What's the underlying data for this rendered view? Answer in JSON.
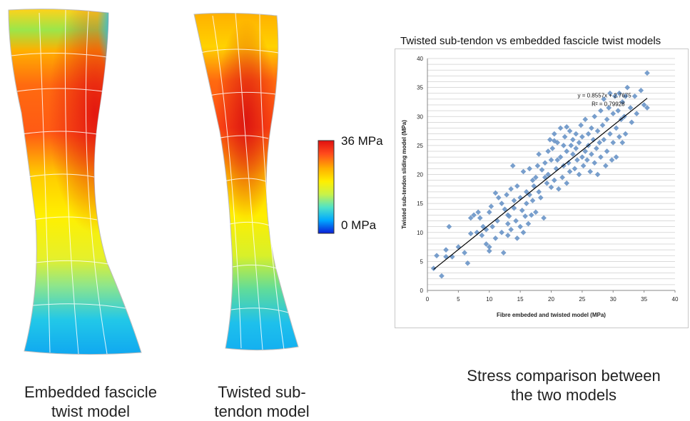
{
  "figure": {
    "left_model_caption": "Embedded fascicle twist model",
    "middle_model_caption": "Twisted sub-tendon model",
    "chart_caption": "Stress comparison between the two models",
    "colorbar": {
      "max_label": "36 MPa",
      "min_label": "0 MPa",
      "colors": [
        "#0a1ed8",
        "#00a8ff",
        "#4fe3c8",
        "#c8f24a",
        "#ffef00",
        "#ffb000",
        "#ff4a1c",
        "#e01010"
      ]
    }
  },
  "chart_data": {
    "type": "scatter",
    "title": "Twisted sub-tendon vs embedded fascicle twist models",
    "xlabel": "Fibre embeded and twisted model (MPa)",
    "ylabel": "Twisted sub-tendon sliding model (MPa)",
    "xlim": [
      0,
      40
    ],
    "ylim": [
      0,
      40
    ],
    "xticks": [
      "0",
      "5",
      "10",
      "15",
      "20",
      "25",
      "30",
      "35",
      "40"
    ],
    "yticks": [
      "0",
      "5",
      "10",
      "15",
      "20",
      "25",
      "30",
      "35",
      "40"
    ],
    "grid": "horizontal",
    "marker_color": "#6a95c8",
    "trendline": {
      "equation": "y = 0.8557x + 2.7675",
      "r2": "R² = 0.79928",
      "slope": 0.8557,
      "intercept": 2.7675,
      "x_range": [
        1,
        35.5
      ]
    },
    "points": [
      [
        1,
        3.8
      ],
      [
        1.5,
        6
      ],
      [
        2.3,
        2.5
      ],
      [
        3,
        5.8
      ],
      [
        3,
        7
      ],
      [
        3.5,
        11
      ],
      [
        4,
        5.8
      ],
      [
        5,
        7.5
      ],
      [
        6,
        6.5
      ],
      [
        6.5,
        4.7
      ],
      [
        7,
        9.8
      ],
      [
        7,
        12.5
      ],
      [
        7.5,
        13
      ],
      [
        8,
        10
      ],
      [
        8.2,
        13.5
      ],
      [
        8.5,
        12.5
      ],
      [
        8.8,
        9.5
      ],
      [
        9,
        11
      ],
      [
        9.5,
        8
      ],
      [
        9.5,
        10.5
      ],
      [
        10,
        7.5
      ],
      [
        10,
        13.5
      ],
      [
        10.3,
        14.5
      ],
      [
        10.5,
        11
      ],
      [
        11,
        16.8
      ],
      [
        11,
        9
      ],
      [
        11.3,
        12
      ],
      [
        11.5,
        16
      ],
      [
        12,
        10
      ],
      [
        12,
        15
      ],
      [
        12.3,
        6.5
      ],
      [
        12.5,
        14
      ],
      [
        12.8,
        16.5
      ],
      [
        13,
        13
      ],
      [
        13,
        11.5
      ],
      [
        13.2,
        12.8
      ],
      [
        13.5,
        10.5
      ],
      [
        13.5,
        17.5
      ],
      [
        13.8,
        21.5
      ],
      [
        14,
        14.2
      ],
      [
        14,
        15.5
      ],
      [
        14.3,
        12
      ],
      [
        14.5,
        9
      ],
      [
        14.5,
        18
      ],
      [
        15,
        11
      ],
      [
        15,
        16
      ],
      [
        15.3,
        13.8
      ],
      [
        15.5,
        10
      ],
      [
        15.5,
        20.5
      ],
      [
        15.8,
        12.8
      ],
      [
        16,
        15
      ],
      [
        16,
        17
      ],
      [
        16.3,
        11.5
      ],
      [
        16.5,
        16.5
      ],
      [
        16.8,
        13
      ],
      [
        17,
        19
      ],
      [
        17,
        15.5
      ],
      [
        17.2,
        18
      ],
      [
        17.5,
        19.5
      ],
      [
        17.5,
        13.5
      ],
      [
        17.8,
        21.5
      ],
      [
        18,
        17
      ],
      [
        18,
        23.5
      ],
      [
        18.3,
        16
      ],
      [
        18.5,
        20.8
      ],
      [
        18.8,
        12.5
      ],
      [
        19,
        22
      ],
      [
        19,
        19.5
      ],
      [
        19.3,
        18.5
      ],
      [
        19.5,
        24
      ],
      [
        19.5,
        20
      ],
      [
        19.8,
        26
      ],
      [
        20,
        17.8
      ],
      [
        20,
        22.5
      ],
      [
        20.2,
        24.5
      ],
      [
        20.5,
        27
      ],
      [
        20.5,
        19
      ],
      [
        20.8,
        21
      ],
      [
        21,
        22.5
      ],
      [
        21,
        25.5
      ],
      [
        21.2,
        17.5
      ],
      [
        21.5,
        28
      ],
      [
        21.5,
        23
      ],
      [
        21.8,
        19.5
      ],
      [
        22,
        25
      ],
      [
        22,
        21.5
      ],
      [
        22.2,
        26.5
      ],
      [
        22.5,
        24
      ],
      [
        22.5,
        18.5
      ],
      [
        22.8,
        22
      ],
      [
        23,
        27.5
      ],
      [
        23,
        20.5
      ],
      [
        23.2,
        25
      ],
      [
        23.5,
        23.5
      ],
      [
        23.5,
        26
      ],
      [
        23.8,
        21
      ],
      [
        24,
        24.5
      ],
      [
        24,
        27
      ],
      [
        24.2,
        22.5
      ],
      [
        24.5,
        25.5
      ],
      [
        24.5,
        20
      ],
      [
        24.8,
        28.5
      ],
      [
        25,
        23
      ],
      [
        25,
        26.5
      ],
      [
        25.2,
        21.5
      ],
      [
        25.5,
        24
      ],
      [
        25.5,
        29.5
      ],
      [
        25.8,
        22.5
      ],
      [
        26,
        27
      ],
      [
        26,
        25
      ],
      [
        26.3,
        20.5
      ],
      [
        26.5,
        28
      ],
      [
        26.5,
        23.5
      ],
      [
        26.8,
        26
      ],
      [
        27,
        22
      ],
      [
        27,
        30
      ],
      [
        27.3,
        24.5
      ],
      [
        27.5,
        27.5
      ],
      [
        27.5,
        20
      ],
      [
        27.8,
        25.5
      ],
      [
        28,
        31
      ],
      [
        28,
        23
      ],
      [
        28.3,
        28.5
      ],
      [
        28.5,
        26
      ],
      [
        28.5,
        33
      ],
      [
        28.8,
        21.5
      ],
      [
        29,
        29.5
      ],
      [
        29,
        24
      ],
      [
        29.3,
        31.5
      ],
      [
        29.5,
        27
      ],
      [
        29.5,
        34
      ],
      [
        29.8,
        22.5
      ],
      [
        30,
        30.5
      ],
      [
        30,
        25.5
      ],
      [
        30.3,
        33.5
      ],
      [
        30.5,
        28
      ],
      [
        30.5,
        23
      ],
      [
        30.8,
        31
      ],
      [
        31,
        26.5
      ],
      [
        31,
        34
      ],
      [
        31.3,
        29.5
      ],
      [
        31.5,
        32.5
      ],
      [
        31.5,
        25.5
      ],
      [
        31.8,
        30
      ],
      [
        32,
        33.5
      ],
      [
        32,
        27
      ],
      [
        32.3,
        35
      ],
      [
        32.8,
        31.5
      ],
      [
        33,
        29
      ],
      [
        33.5,
        33.5
      ],
      [
        33.8,
        30.5
      ],
      [
        34.5,
        34.5
      ],
      [
        35,
        32
      ],
      [
        35.5,
        37.5
      ],
      [
        35.5,
        31.5
      ],
      [
        22.5,
        28.2
      ],
      [
        13,
        9.5
      ],
      [
        10,
        6.8
      ],
      [
        20.5,
        25.8
      ],
      [
        16.5,
        21
      ]
    ]
  }
}
